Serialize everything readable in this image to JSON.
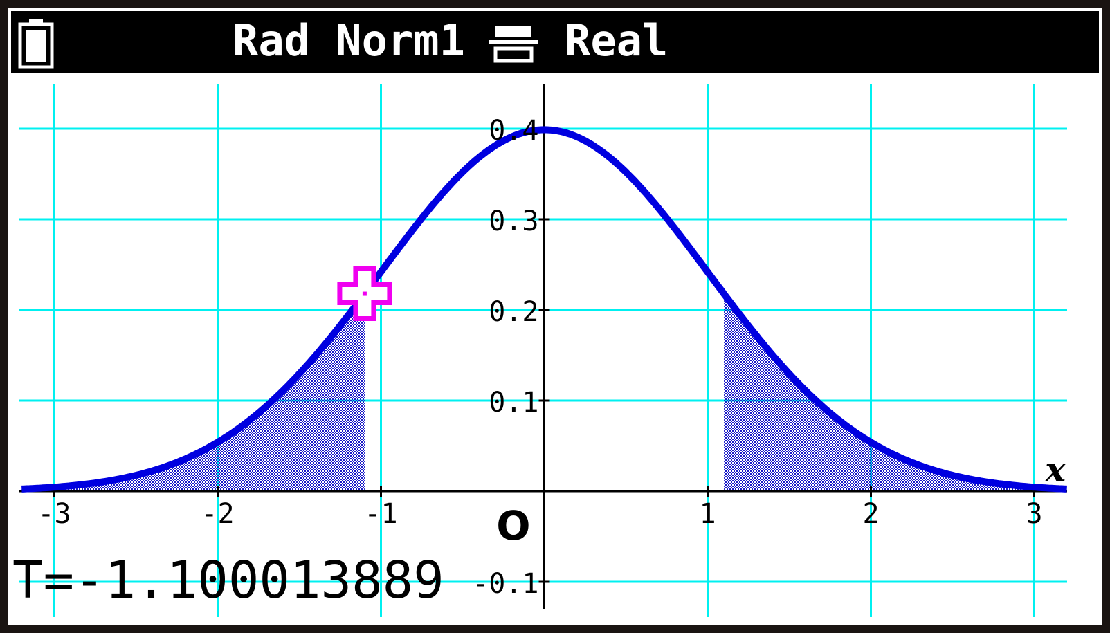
{
  "status_bar": {
    "angle_format": "Rad Norm1",
    "complex_mode": "Real",
    "icons": [
      "battery-icon",
      "input-mode-icon"
    ]
  },
  "readout": {
    "variable": "T",
    "value": "-1.100013889",
    "text": "T=-1.100013889"
  },
  "colors": {
    "grid": "#00f0f0",
    "curve": "#0000e0",
    "shade": "#1a1ac8",
    "cursor": "#f000f0",
    "axes": "#000000",
    "statusbar": "#000000"
  },
  "chart_data": {
    "type": "line",
    "function": "normal probability density",
    "xlim": [
      -3.2,
      3.2
    ],
    "ylim": [
      -0.12,
      0.45
    ],
    "grid": true,
    "x_ticks": [
      {
        "value": -3,
        "label": "-3"
      },
      {
        "value": -2,
        "label": "-2"
      },
      {
        "value": -1,
        "label": "-1"
      },
      {
        "value": 1,
        "label": "1"
      },
      {
        "value": 2,
        "label": "2"
      },
      {
        "value": 3,
        "label": "3"
      }
    ],
    "y_ticks": [
      {
        "value": 0.4,
        "label": "0.4"
      },
      {
        "value": 0.3,
        "label": "0.3"
      },
      {
        "value": 0.2,
        "label": "0.2"
      },
      {
        "value": 0.1,
        "label": "0.1"
      },
      {
        "value": -0.1,
        "label": "-0.1"
      }
    ],
    "origin_label": "O",
    "x_axis_label": "x",
    "curve": [
      {
        "x": -3.2,
        "y": 0.0024
      },
      {
        "x": -3.0,
        "y": 0.0044
      },
      {
        "x": -2.5,
        "y": 0.0175
      },
      {
        "x": -2.0,
        "y": 0.054
      },
      {
        "x": -1.5,
        "y": 0.1295
      },
      {
        "x": -1.1,
        "y": 0.2179
      },
      {
        "x": -1.0,
        "y": 0.242
      },
      {
        "x": -0.5,
        "y": 0.3521
      },
      {
        "x": 0.0,
        "y": 0.3989
      },
      {
        "x": 0.5,
        "y": 0.3521
      },
      {
        "x": 1.0,
        "y": 0.242
      },
      {
        "x": 1.1,
        "y": 0.2179
      },
      {
        "x": 1.5,
        "y": 0.1295
      },
      {
        "x": 2.0,
        "y": 0.054
      },
      {
        "x": 2.5,
        "y": 0.0175
      },
      {
        "x": 3.0,
        "y": 0.0044
      },
      {
        "x": 3.2,
        "y": 0.0024
      }
    ],
    "shaded_regions": [
      {
        "from": -3.2,
        "to": -1.100013889
      },
      {
        "from": 1.100013889,
        "to": 3.2
      }
    ],
    "cursor": {
      "x": -1.100013889,
      "y": 0.2179
    }
  }
}
